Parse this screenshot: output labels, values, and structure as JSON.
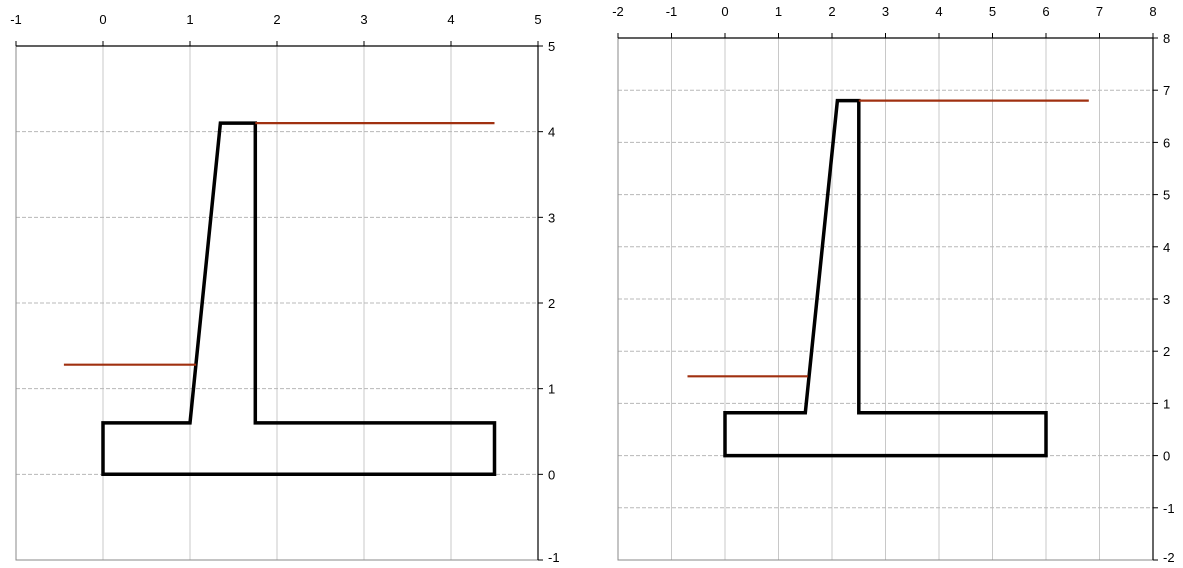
{
  "chart_data": [
    {
      "type": "line",
      "title": "",
      "xlabel": "",
      "ylabel": "",
      "xlim": [
        -1,
        5
      ],
      "ylim": [
        -1,
        5
      ],
      "x_ticks": [
        -1,
        0,
        1,
        2,
        3,
        4,
        5
      ],
      "y_ticks": [
        -1,
        0,
        1,
        2,
        3,
        4,
        5
      ],
      "x_tick_labels": [
        "-1",
        "0",
        "1",
        "2",
        "3",
        "4",
        "5"
      ],
      "y_tick_labels": [
        "-1",
        "0",
        "1",
        "2",
        "3",
        "4",
        "5"
      ],
      "x_axis_position": "top",
      "y_axis_position": "right",
      "grid": true,
      "series": [
        {
          "color": "#000000",
          "closed": true,
          "points": [
            [
              0,
              0
            ],
            [
              4.5,
              0
            ],
            [
              4.5,
              0.6
            ],
            [
              1.75,
              0.6
            ],
            [
              1.75,
              4.1
            ],
            [
              1.35,
              4.1
            ],
            [
              1.0,
              0.6
            ],
            [
              0,
              0.6
            ]
          ]
        },
        {
          "color": "#a03010",
          "closed": false,
          "points": [
            [
              1.75,
              4.1
            ],
            [
              4.5,
              4.1
            ]
          ]
        },
        {
          "color": "#a03010",
          "closed": false,
          "points": [
            [
              -0.45,
              1.28
            ],
            [
              1.07,
              1.28
            ]
          ]
        }
      ]
    },
    {
      "type": "line",
      "title": "",
      "xlabel": "",
      "ylabel": "",
      "xlim": [
        -2,
        8
      ],
      "ylim": [
        -2,
        8
      ],
      "x_ticks": [
        -2,
        -1,
        0,
        1,
        2,
        3,
        4,
        5,
        6,
        7,
        8
      ],
      "y_ticks": [
        -2,
        -1,
        0,
        1,
        2,
        3,
        4,
        5,
        6,
        7,
        8
      ],
      "x_tick_labels": [
        "-2",
        "-1",
        "0",
        "1",
        "2",
        "3",
        "4",
        "5",
        "6",
        "7",
        "8"
      ],
      "y_tick_labels": [
        "-2",
        "-1",
        "0",
        "1",
        "2",
        "3",
        "4",
        "5",
        "6",
        "7",
        "8"
      ],
      "x_axis_position": "top",
      "y_axis_position": "right",
      "grid": true,
      "series": [
        {
          "color": "#000000",
          "closed": true,
          "points": [
            [
              0,
              0
            ],
            [
              6,
              0
            ],
            [
              6,
              0.82
            ],
            [
              2.5,
              0.82
            ],
            [
              2.5,
              6.8
            ],
            [
              2.1,
              6.8
            ],
            [
              1.5,
              0.82
            ],
            [
              0,
              0.82
            ]
          ]
        },
        {
          "color": "#a03010",
          "closed": false,
          "points": [
            [
              2.5,
              6.8
            ],
            [
              6.8,
              6.8
            ]
          ]
        },
        {
          "color": "#a03010",
          "closed": false,
          "points": [
            [
              -0.7,
              1.52
            ],
            [
              1.55,
              1.52
            ]
          ]
        }
      ]
    }
  ]
}
